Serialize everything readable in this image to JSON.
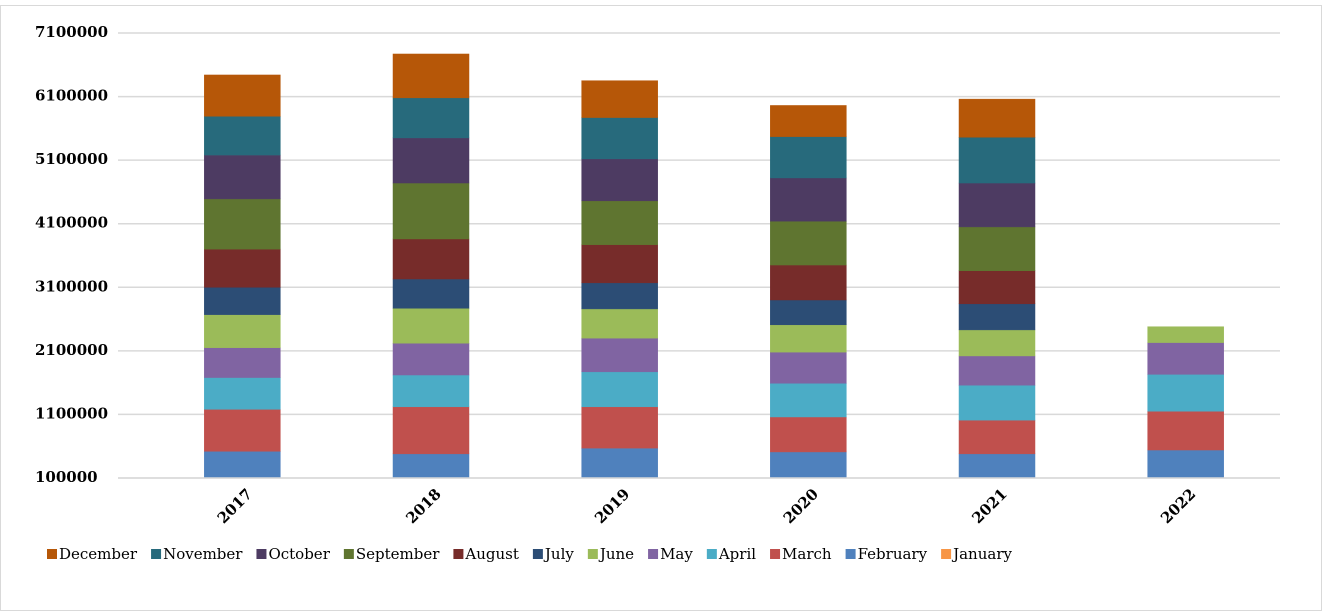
{
  "chart_data": {
    "type": "stacked_bar",
    "categories": [
      "2017",
      "2018",
      "2019",
      "2020",
      "2021",
      "2022"
    ],
    "series": [
      {
        "name": "January",
        "color": "#f79646",
        "values": [
          20000,
          20000,
          20000,
          20000,
          20000,
          20000
        ]
      },
      {
        "name": "February",
        "color": "#4f81bd",
        "values": [
          500000,
          460000,
          550000,
          490000,
          460000,
          520000
        ]
      },
      {
        "name": "March",
        "color": "#c0504d",
        "values": [
          660000,
          740000,
          650000,
          550000,
          530000,
          610000
        ]
      },
      {
        "name": "April",
        "color": "#4bacc6",
        "values": [
          500000,
          500000,
          550000,
          530000,
          550000,
          580000
        ]
      },
      {
        "name": "May",
        "color": "#8064a2",
        "values": [
          470000,
          500000,
          530000,
          490000,
          460000,
          500000
        ]
      },
      {
        "name": "June",
        "color": "#9bbb59",
        "values": [
          520000,
          550000,
          460000,
          430000,
          410000,
          250000
        ]
      },
      {
        "name": "July",
        "color": "#2c4d75",
        "values": [
          430000,
          460000,
          410000,
          390000,
          410000,
          null
        ]
      },
      {
        "name": "August",
        "color": "#772c2a",
        "values": [
          600000,
          630000,
          600000,
          550000,
          520000,
          null
        ]
      },
      {
        "name": "September",
        "color": "#5f7530",
        "values": [
          790000,
          880000,
          690000,
          690000,
          690000,
          null
        ]
      },
      {
        "name": "October",
        "color": "#4d3b62",
        "values": [
          690000,
          710000,
          660000,
          680000,
          690000,
          null
        ]
      },
      {
        "name": "November",
        "color": "#276a7c",
        "values": [
          610000,
          630000,
          650000,
          650000,
          720000,
          null
        ]
      },
      {
        "name": "December",
        "color": "#b65708",
        "values": [
          650000,
          690000,
          580000,
          490000,
          600000,
          null
        ]
      }
    ],
    "ylim": [
      100000,
      7100000
    ],
    "yticks": [
      100000,
      1100000,
      2100000,
      3100000,
      4100000,
      5100000,
      6100000,
      7100000
    ],
    "grid": true,
    "legend": "bottom"
  }
}
